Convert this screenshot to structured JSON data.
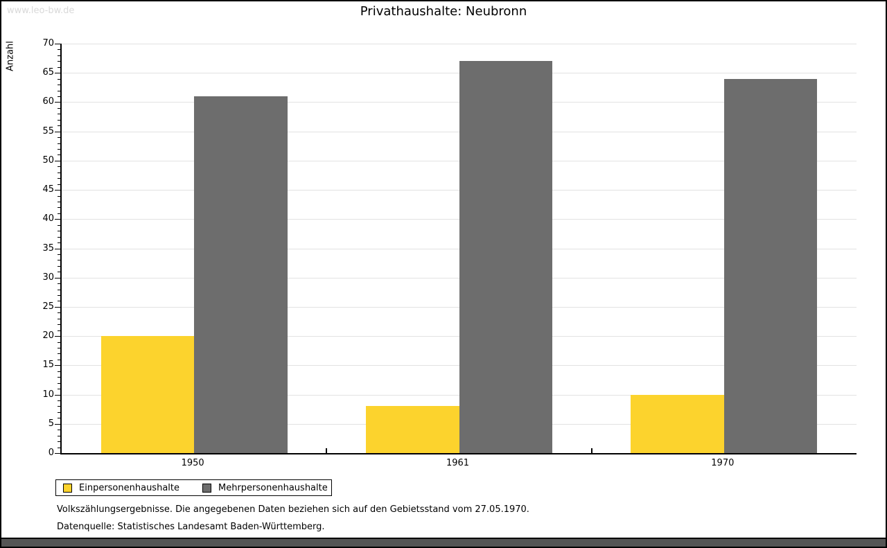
{
  "watermark": "www.leo-bw.de",
  "footer": {
    "line1": "Volkszählungsergebnisse. Die angegebenen Daten beziehen sich auf den Gebietsstand vom 27.05.1970.",
    "line2": "Datenquelle: Statistisches Landesamt Baden-Württemberg."
  },
  "colors": {
    "series_yellow": "#fcd32d",
    "series_gray": "#6d6d6d",
    "gridline": "#e2e2e2",
    "watermark": "#d9d9d9",
    "bottom_strip": "#555555"
  },
  "chart_data": {
    "type": "bar",
    "title": "Privathaushalte: Neubronn",
    "categories": [
      "1950",
      "1961",
      "1970"
    ],
    "series": [
      {
        "name": "Einpersonenhaushalte",
        "color": "#fcd32d",
        "values": [
          20,
          8,
          10
        ]
      },
      {
        "name": "Mehrpersonenhaushalte",
        "color": "#6d6d6d",
        "values": [
          61,
          67,
          64
        ]
      }
    ],
    "xlabel": "",
    "ylabel": "Anzahl",
    "ylim": [
      0,
      70
    ],
    "ytick_step": 5,
    "minor_tick_step": 1,
    "grid": true,
    "legend_position": "bottom-left"
  }
}
